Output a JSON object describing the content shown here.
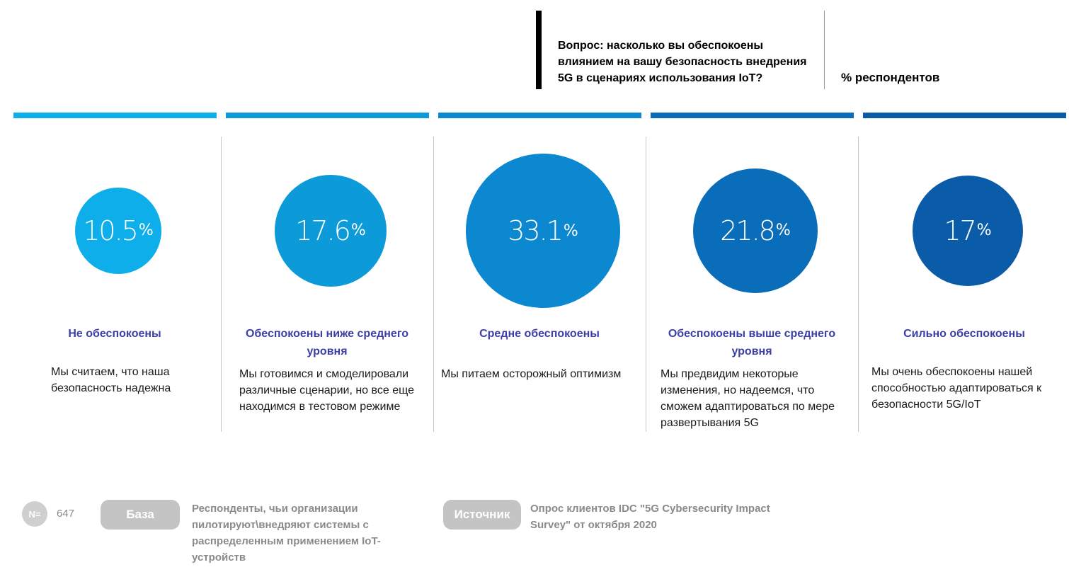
{
  "question": {
    "text": "Вопрос: насколько вы обеспокоены влиянием на вашу безопасность внедрения 5G в сценариях использования IoT?",
    "unit_label": "% респондентов"
  },
  "chart_data": {
    "type": "bubble",
    "unit": "%",
    "categories": [
      "Не обеспокоены",
      "Обеспокоены ниже среднего уровня",
      "Средне обеспокоены",
      "Обеспокоены выше среднего уровня",
      "Сильно обеспокоены"
    ],
    "values": [
      10.5,
      17.6,
      33.1,
      21.8,
      17
    ],
    "value_labels": [
      "10.5",
      "17.6",
      "33.1",
      "21.8",
      "17"
    ],
    "descriptions": [
      "Мы считаем, что наша безопасность надежна",
      "Мы готовимся и смоделировали различные сценарии, но все еще находимся в тестовом режиме",
      "Мы питаем осторожный оптимизм",
      "Мы предвидим некоторые изменения, но надеемся, что сможем адаптироваться по мере развертывания 5G",
      "Мы очень обеспокоены нашей способностью адаптироваться к безопасности 5G/IoT"
    ],
    "colors": [
      "#0eaeea",
      "#0c9ad8",
      "#0b88cf",
      "#0a6db9",
      "#0a5ca8"
    ]
  },
  "footer": {
    "n_label": "N=",
    "n_value": "647",
    "base_label": "База",
    "base_text": "Респонденты, чьи организации пилотируют\\внедряют системы с распределенным применением IoT-устройств",
    "source_label": "Источник",
    "source_text": "Опрос клиентов IDC \"5G Cybersecurity Impact Survey\" от октября 2020"
  }
}
